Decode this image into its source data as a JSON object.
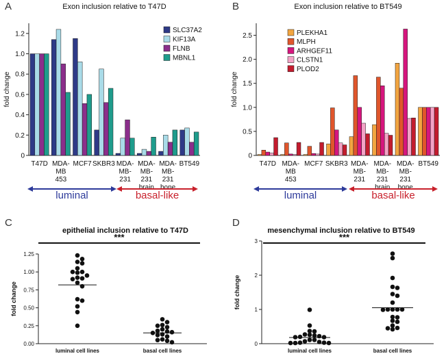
{
  "chart_data": [
    {
      "panel": "A",
      "type": "bar",
      "title": "Exon inclusion relative to T47D",
      "ylabel": "fold change",
      "ylim": [
        0,
        1.3
      ],
      "yticks": [
        "0",
        "0.2",
        "0.4",
        "0.6",
        "0.8",
        "1.0",
        "1.2"
      ],
      "categories": [
        [
          "T47D"
        ],
        [
          "MDA-",
          "MB",
          "453"
        ],
        [
          "MCF7"
        ],
        [
          "SKBR3"
        ],
        [
          "MDA-",
          "MB-",
          "231"
        ],
        [
          "MDA-",
          "MB-",
          "231",
          "brain"
        ],
        [
          "MDA-",
          "MB-",
          "231",
          "bone"
        ],
        [
          "BT549"
        ]
      ],
      "series": [
        {
          "name": "SLC37A2",
          "color": "#2e3a87",
          "values": [
            1.0,
            1.14,
            1.15,
            0.25,
            0.02,
            0.02,
            0.04,
            0.25
          ]
        },
        {
          "name": "KIF13A",
          "color": "#a9dbe8",
          "values": [
            1.0,
            1.24,
            0.92,
            0.85,
            0.17,
            0.06,
            0.2,
            0.27
          ]
        },
        {
          "name": "FLNB",
          "color": "#8b2e8b",
          "values": [
            1.0,
            0.9,
            0.51,
            0.52,
            0.35,
            0.04,
            0.13,
            0.13
          ]
        },
        {
          "name": "MBNL1",
          "color": "#1f9c8c",
          "values": [
            1.0,
            0.62,
            0.6,
            0.66,
            0.17,
            0.18,
            0.25,
            0.23
          ]
        }
      ],
      "groups": [
        {
          "label": "luminal",
          "color": "#2d3a9a"
        },
        {
          "label": "basal-like",
          "color": "#c8202b"
        }
      ]
    },
    {
      "panel": "B",
      "type": "bar",
      "title": "Exon inclusion relative to BT549",
      "ylabel": "fold change",
      "ylim": [
        0,
        2.75
      ],
      "yticks": [
        "0",
        "0.5",
        "1.0",
        "1.5",
        "2.0",
        "2.5"
      ],
      "categories": [
        [
          "T47D"
        ],
        [
          "MDA-",
          "MB",
          "453"
        ],
        [
          "MCF7"
        ],
        [
          "SKBR3"
        ],
        [
          "MDA-",
          "MB-",
          "231"
        ],
        [
          "MDA-",
          "MB-",
          "231",
          "brain"
        ],
        [
          "MDA-",
          "MB-",
          "231",
          "bone"
        ],
        [
          "BT549"
        ]
      ],
      "series": [
        {
          "name": "PLEKHA1",
          "color": "#f2a541",
          "values": [
            0.02,
            0.02,
            0.02,
            0.24,
            0.39,
            0.64,
            1.92,
            1.0
          ]
        },
        {
          "name": "MLPH",
          "color": "#e0562c",
          "values": [
            0.11,
            0.26,
            0.19,
            0.99,
            1.66,
            1.63,
            1.4,
            1.0
          ]
        },
        {
          "name": "ARHGEF11",
          "color": "#d6167e",
          "values": [
            0.07,
            0.03,
            0.04,
            0.53,
            1.0,
            1.45,
            2.63,
            1.0
          ]
        },
        {
          "name": "CLSTN1",
          "color": "#f3a3c6",
          "values": [
            0.05,
            0.02,
            0.03,
            0.26,
            0.67,
            0.46,
            0.77,
            1.0
          ]
        },
        {
          "name": "PLOD2",
          "color": "#c31c2e",
          "values": [
            0.37,
            0.27,
            0.27,
            0.22,
            0.45,
            0.42,
            0.78,
            1.0
          ]
        }
      ],
      "groups": [
        {
          "label": "luminal",
          "color": "#2d3a9a"
        },
        {
          "label": "basal-like",
          "color": "#c8202b"
        }
      ]
    },
    {
      "panel": "C",
      "type": "scatter",
      "title": "epithelial inclusion relative to T47D",
      "ylabel": "fold  change",
      "ylim": [
        0,
        1.25
      ],
      "yticks": [
        "0.00",
        "0.25",
        "0.50",
        "0.75",
        "1.00",
        "1.25"
      ],
      "significance": "***",
      "categories": [
        "luminal cell lines",
        "basal cell lines"
      ],
      "series": [
        {
          "name": "luminal cell lines",
          "mean": 0.82,
          "values": [
            1.23,
            1.18,
            1.14,
            1.12,
            1.05,
            1.0,
            1.0,
            0.99,
            0.95,
            0.92,
            0.91,
            0.9,
            0.85,
            0.8,
            0.62,
            0.6,
            0.52,
            0.44,
            0.25
          ]
        },
        {
          "name": "basal cell lines",
          "mean": 0.15,
          "values": [
            0.34,
            0.3,
            0.26,
            0.25,
            0.23,
            0.2,
            0.18,
            0.17,
            0.16,
            0.15,
            0.13,
            0.12,
            0.1,
            0.06,
            0.05,
            0.04,
            0.02
          ]
        }
      ]
    },
    {
      "panel": "D",
      "type": "scatter",
      "title": "mesenchymal inclusion relative to BT549",
      "ylabel": "fold change",
      "ylim": [
        0,
        3
      ],
      "yticks": [
        "0",
        "1",
        "2",
        "3"
      ],
      "significance": "***",
      "categories": [
        "luminal cell lines",
        "basal cell lines"
      ],
      "series": [
        {
          "name": "luminal cell lines",
          "mean": 0.18,
          "values": [
            0.99,
            0.53,
            0.37,
            0.36,
            0.27,
            0.26,
            0.24,
            0.22,
            0.2,
            0.19,
            0.19,
            0.11,
            0.11,
            0.07,
            0.05,
            0.03,
            0.03,
            0.02,
            0.02,
            0.02
          ]
        },
        {
          "name": "basal cell lines",
          "mean": 1.05,
          "values": [
            2.63,
            2.5,
            1.92,
            1.66,
            1.63,
            1.45,
            1.4,
            1.2,
            1.0,
            1.0,
            1.0,
            1.0,
            0.99,
            0.78,
            0.77,
            0.67,
            0.64,
            0.53,
            0.46,
            0.45,
            0.42
          ]
        }
      ]
    }
  ]
}
